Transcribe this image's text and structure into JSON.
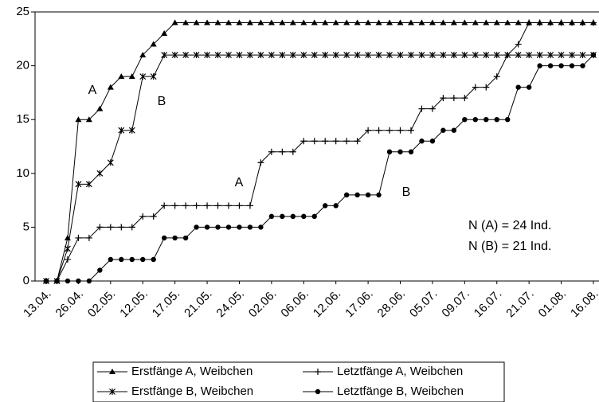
{
  "chart_data": {
    "type": "line",
    "categories": [
      "13.04.",
      null,
      null,
      "26.04.",
      null,
      null,
      "02.05.",
      null,
      null,
      "12.05.",
      null,
      null,
      "17.05.",
      null,
      null,
      "21.05.",
      null,
      null,
      "24.05.",
      null,
      null,
      "02.06.",
      null,
      null,
      "06.06.",
      null,
      null,
      "12.06.",
      null,
      null,
      "17.06.",
      null,
      null,
      "28.06.",
      null,
      null,
      "05.07.",
      null,
      null,
      "09.07.",
      null,
      null,
      "16.07.",
      null,
      null,
      "21.07.",
      null,
      null,
      "01.08.",
      null,
      null,
      "16.08."
    ],
    "series": [
      {
        "name": "Erstfänge A, Weibchen",
        "color": "#000000",
        "marker": "triangle",
        "values": [
          0,
          0,
          4,
          15,
          15,
          16,
          18,
          19,
          19,
          21,
          22,
          23,
          24,
          24,
          24,
          24,
          24,
          24,
          24,
          24,
          24,
          24,
          24,
          24,
          24,
          24,
          24,
          24,
          24,
          24,
          24,
          24,
          24,
          24,
          24,
          24,
          24,
          24,
          24,
          24,
          24,
          24,
          24,
          24,
          24,
          24,
          24,
          24,
          24,
          24,
          24,
          24
        ]
      },
      {
        "name": "Letztfänge A, Weibchen",
        "color": "#000000",
        "marker": "plus",
        "values": [
          0,
          0,
          2,
          4,
          4,
          5,
          5,
          5,
          5,
          6,
          6,
          7,
          7,
          7,
          7,
          7,
          7,
          7,
          7,
          7,
          11,
          12,
          12,
          12,
          13,
          13,
          13,
          13,
          13,
          13,
          14,
          14,
          14,
          14,
          14,
          16,
          16,
          17,
          17,
          17,
          18,
          18,
          19,
          21,
          22,
          24,
          24,
          24,
          24,
          24,
          24,
          24
        ]
      },
      {
        "name": "Erstfänge B, Weibchen",
        "color": "#000000",
        "marker": "star",
        "values": [
          0,
          0,
          3,
          9,
          9,
          10,
          11,
          14,
          14,
          19,
          19,
          21,
          21,
          21,
          21,
          21,
          21,
          21,
          21,
          21,
          21,
          21,
          21,
          21,
          21,
          21,
          21,
          21,
          21,
          21,
          21,
          21,
          21,
          21,
          21,
          21,
          21,
          21,
          21,
          21,
          21,
          21,
          21,
          21,
          21,
          21,
          21,
          21,
          21,
          21,
          21,
          21
        ]
      },
      {
        "name": "Letztfänge B, Weibchen",
        "color": "#000000",
        "marker": "circle",
        "values": [
          0,
          0,
          0,
          0,
          0,
          1,
          2,
          2,
          2,
          2,
          2,
          4,
          4,
          4,
          5,
          5,
          5,
          5,
          5,
          5,
          5,
          6,
          6,
          6,
          6,
          6,
          7,
          7,
          8,
          8,
          8,
          8,
          12,
          12,
          12,
          13,
          13,
          14,
          14,
          15,
          15,
          15,
          15,
          15,
          18,
          18,
          20,
          20,
          20,
          20,
          20,
          21
        ]
      }
    ],
    "ylim": [
      0,
      25
    ],
    "yticks": [
      0,
      5,
      10,
      15,
      20,
      25
    ],
    "annotations": [
      "A",
      "B",
      "A",
      "B",
      "N (A) = 24 Ind.",
      "N (B) = 21 Ind."
    ],
    "legend": "bottom"
  }
}
